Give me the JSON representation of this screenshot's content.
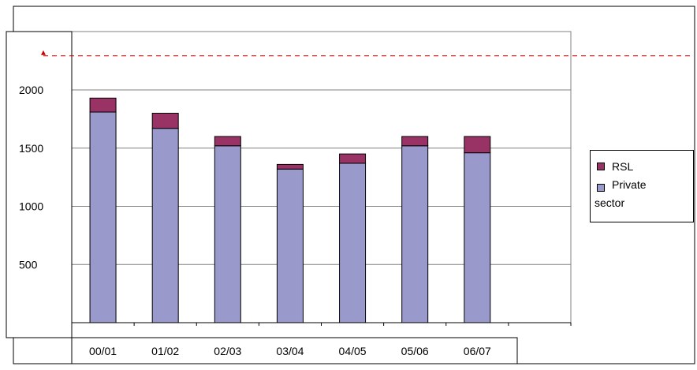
{
  "chart_data": {
    "type": "bar",
    "stacked": true,
    "title": "",
    "xlabel": "",
    "ylabel": "",
    "categories": [
      "00/01",
      "01/02",
      "02/03",
      "03/04",
      "04/05",
      "05/06",
      "06/07"
    ],
    "series": [
      {
        "name": "Private sector",
        "color": "#9999cc",
        "values": [
          1810,
          1670,
          1520,
          1320,
          1370,
          1520,
          1460
        ]
      },
      {
        "name": "RSL",
        "color": "#993366",
        "values": [
          120,
          130,
          80,
          40,
          80,
          80,
          140
        ]
      }
    ],
    "y_ticks": [
      500,
      1000,
      1500,
      2000
    ],
    "ylim": [
      0,
      2350
    ],
    "grid": true,
    "reference_line": {
      "value": 2300,
      "color": "#cc0000",
      "style": "dashed"
    },
    "legend": {
      "position": "right",
      "items": [
        {
          "label": "RSL",
          "color": "#993366"
        },
        {
          "label": "Private sector",
          "color": "#9999cc"
        }
      ]
    }
  }
}
